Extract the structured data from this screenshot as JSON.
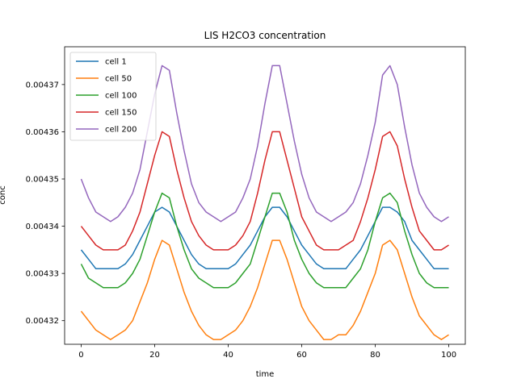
{
  "chart_data": {
    "type": "line",
    "title": "LIS H2CO3 concentration",
    "xlabel": "time",
    "ylabel": "conc",
    "xlim": [
      -4.5,
      104.5
    ],
    "ylim": [
      0.004315,
      0.004378
    ],
    "xticks": [
      0,
      20,
      40,
      60,
      80,
      100
    ],
    "xtick_labels": [
      "0",
      "20",
      "40",
      "60",
      "80",
      "100"
    ],
    "yticks": [
      0.00432,
      0.00433,
      0.00434,
      0.00435,
      0.00436,
      0.00437
    ],
    "ytick_labels": [
      "0.00432",
      "0.00433",
      "0.00434",
      "0.00435",
      "0.00436",
      "0.00437"
    ],
    "grid": false,
    "legend_position": "upper-left",
    "x": [
      0,
      2,
      4,
      6,
      8,
      10,
      12,
      14,
      16,
      18,
      20,
      22,
      24,
      26,
      28,
      30,
      32,
      34,
      36,
      38,
      40,
      42,
      44,
      46,
      48,
      50,
      52,
      54,
      56,
      58,
      60,
      62,
      64,
      66,
      68,
      70,
      72,
      74,
      76,
      78,
      80,
      82,
      84,
      86,
      88,
      90,
      92,
      94,
      96,
      98,
      100
    ],
    "series": [
      {
        "name": "cell 1",
        "color": "#1f77b4",
        "values": [
          0.004335,
          0.004333,
          0.004331,
          0.004331,
          0.004331,
          0.004331,
          0.004332,
          0.004334,
          0.004337,
          0.00434,
          0.004343,
          0.004344,
          0.004343,
          0.00434,
          0.004337,
          0.004334,
          0.004332,
          0.004331,
          0.004331,
          0.004331,
          0.004331,
          0.004332,
          0.004334,
          0.004336,
          0.004339,
          0.004342,
          0.004344,
          0.004344,
          0.004342,
          0.004339,
          0.004336,
          0.004334,
          0.004332,
          0.004331,
          0.004331,
          0.004331,
          0.004331,
          0.004333,
          0.004335,
          0.004338,
          0.004341,
          0.004344,
          0.004344,
          0.004343,
          0.004341,
          0.004337,
          0.004335,
          0.004333,
          0.004331,
          0.004331,
          0.004331
        ]
      },
      {
        "name": "cell 50",
        "color": "#ff7f0e",
        "values": [
          0.004322,
          0.00432,
          0.004318,
          0.004317,
          0.004316,
          0.004317,
          0.004318,
          0.00432,
          0.004324,
          0.004328,
          0.004333,
          0.004337,
          0.004336,
          0.004331,
          0.004326,
          0.004322,
          0.004319,
          0.004317,
          0.004316,
          0.004316,
          0.004317,
          0.004318,
          0.00432,
          0.004323,
          0.004327,
          0.004332,
          0.004337,
          0.004337,
          0.004333,
          0.004328,
          0.004323,
          0.00432,
          0.004318,
          0.004316,
          0.004316,
          0.004317,
          0.004317,
          0.004319,
          0.004322,
          0.004326,
          0.00433,
          0.004336,
          0.004337,
          0.004335,
          0.00433,
          0.004325,
          0.004321,
          0.004319,
          0.004317,
          0.004316,
          0.004317
        ]
      },
      {
        "name": "cell 100",
        "color": "#2ca02c",
        "values": [
          0.004332,
          0.004329,
          0.004328,
          0.004327,
          0.004327,
          0.004327,
          0.004328,
          0.00433,
          0.004333,
          0.004338,
          0.004343,
          0.004347,
          0.004346,
          0.00434,
          0.004335,
          0.004331,
          0.004329,
          0.004328,
          0.004327,
          0.004327,
          0.004327,
          0.004328,
          0.00433,
          0.004332,
          0.004337,
          0.004342,
          0.004347,
          0.004347,
          0.004343,
          0.004337,
          0.004333,
          0.00433,
          0.004328,
          0.004327,
          0.004327,
          0.004327,
          0.004327,
          0.004329,
          0.004331,
          0.004335,
          0.004341,
          0.004346,
          0.004347,
          0.004345,
          0.004339,
          0.004334,
          0.00433,
          0.004328,
          0.004327,
          0.004327,
          0.004327
        ]
      },
      {
        "name": "cell 150",
        "color": "#d62728",
        "values": [
          0.00434,
          0.004338,
          0.004336,
          0.004335,
          0.004335,
          0.004335,
          0.004336,
          0.004339,
          0.004343,
          0.004349,
          0.004355,
          0.00436,
          0.004359,
          0.004352,
          0.004346,
          0.004341,
          0.004338,
          0.004336,
          0.004335,
          0.004335,
          0.004335,
          0.004336,
          0.004338,
          0.004341,
          0.004347,
          0.004354,
          0.00436,
          0.00436,
          0.004354,
          0.004348,
          0.004342,
          0.004339,
          0.004336,
          0.004335,
          0.004335,
          0.004335,
          0.004336,
          0.004337,
          0.004341,
          0.004346,
          0.004352,
          0.004359,
          0.00436,
          0.004357,
          0.00435,
          0.004344,
          0.004339,
          0.004337,
          0.004335,
          0.004335,
          0.004336
        ]
      },
      {
        "name": "cell 200",
        "color": "#9467bd",
        "values": [
          0.00435,
          0.004346,
          0.004343,
          0.004342,
          0.004341,
          0.004342,
          0.004344,
          0.004347,
          0.004352,
          0.00436,
          0.004368,
          0.004374,
          0.004373,
          0.004364,
          0.004356,
          0.004349,
          0.004345,
          0.004343,
          0.004342,
          0.004341,
          0.004342,
          0.004343,
          0.004346,
          0.00435,
          0.004357,
          0.004366,
          0.004374,
          0.004374,
          0.004366,
          0.004358,
          0.004351,
          0.004346,
          0.004343,
          0.004342,
          0.004341,
          0.004342,
          0.004343,
          0.004345,
          0.004349,
          0.004355,
          0.004362,
          0.004372,
          0.004374,
          0.00437,
          0.004361,
          0.004353,
          0.004347,
          0.004344,
          0.004342,
          0.004341,
          0.004342
        ]
      }
    ]
  }
}
